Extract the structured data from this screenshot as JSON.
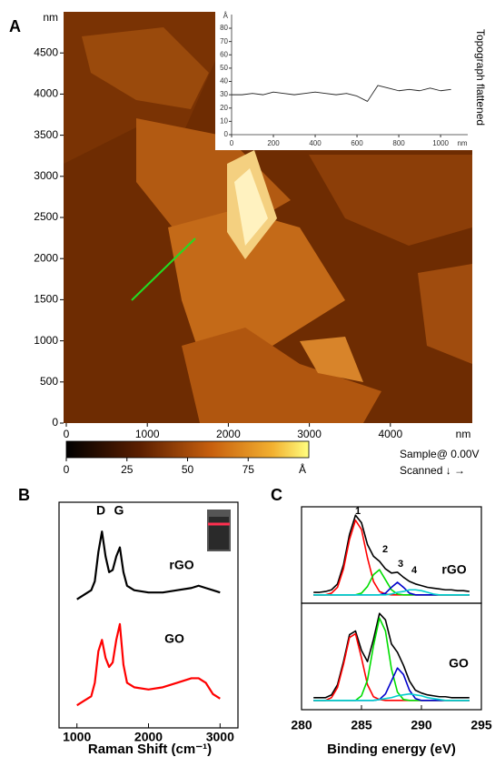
{
  "chart_data": [
    {
      "type": "image",
      "label": "A",
      "xlim": [
        0,
        5000
      ],
      "ylim": [
        0,
        5000
      ],
      "xticks": [
        0,
        1000,
        2000,
        3000,
        4000
      ],
      "yticks": [
        0,
        500,
        1000,
        1500,
        2000,
        2500,
        3000,
        3500,
        4000,
        4500
      ],
      "xunit": "nm",
      "yunit": "nm",
      "colorbar": {
        "lim": [
          0,
          100
        ],
        "ticks": [
          0,
          25,
          50,
          75
        ],
        "unit": "Å"
      },
      "annotations": [
        "Sample@ 0.00V",
        "Scanned ↓ →"
      ]
    },
    {
      "type": "line",
      "title": "Topograph flattened",
      "color": "#222222",
      "x": [
        0,
        50,
        100,
        150,
        200,
        250,
        300,
        350,
        400,
        450,
        500,
        550,
        600,
        650,
        700,
        750,
        800,
        850,
        900,
        950,
        1000,
        1050
      ],
      "values": [
        30,
        30,
        31,
        30,
        32,
        31,
        30,
        31,
        32,
        31,
        30,
        31,
        29,
        25,
        37,
        35,
        33,
        34,
        33,
        35,
        33,
        34
      ],
      "xlim": [
        0,
        1130
      ],
      "ylim": [
        0,
        90
      ],
      "xticks": [
        0,
        200,
        400,
        600,
        800,
        1000
      ],
      "yticks": [
        0,
        10,
        20,
        30,
        40,
        50,
        60,
        70,
        80
      ],
      "xunit": "nm",
      "yunit": "Å"
    },
    {
      "type": "line",
      "label": "B",
      "xlabel": "Raman Shift (cm⁻¹)",
      "x": [
        1000,
        1100,
        1200,
        1250,
        1300,
        1350,
        1400,
        1450,
        1500,
        1550,
        1600,
        1650,
        1700,
        1800,
        2000,
        2200,
        2400,
        2600,
        2700,
        2800,
        2900,
        3000
      ],
      "series": [
        {
          "name": "rGO",
          "color": "#000000",
          "values": [
            5.7,
            5.9,
            6.1,
            6.5,
            7.8,
            8.7,
            7.6,
            6.9,
            7.0,
            7.6,
            8.0,
            6.9,
            6.3,
            6.1,
            6.0,
            6.0,
            6.1,
            6.2,
            6.3,
            6.2,
            6.1,
            6.0
          ]
        },
        {
          "name": "GO",
          "color": "#ff0000",
          "values": [
            1.0,
            1.2,
            1.4,
            2.0,
            3.4,
            3.9,
            3.1,
            2.7,
            2.9,
            3.9,
            4.6,
            2.8,
            2.0,
            1.8,
            1.7,
            1.8,
            2.0,
            2.2,
            2.2,
            2.0,
            1.5,
            1.3
          ]
        }
      ],
      "xlim": [
        750,
        3250
      ],
      "ylim": [
        0,
        10
      ],
      "xticks": [
        1000,
        2000,
        3000
      ],
      "annotations": [
        "D",
        "G"
      ]
    },
    {
      "type": "line",
      "label": "C",
      "title": "rGO",
      "x": [
        281,
        281.5,
        282,
        282.5,
        283,
        283.5,
        284,
        284.5,
        285,
        285.5,
        286,
        286.5,
        287,
        287.5,
        288,
        288.5,
        289,
        289.5,
        290,
        290.5,
        291,
        291.5,
        292,
        292.5,
        293,
        293.5,
        294
      ],
      "series": [
        {
          "color": "#000000",
          "values": [
            0.03,
            0.03,
            0.04,
            0.06,
            0.13,
            0.36,
            0.72,
            0.95,
            0.86,
            0.6,
            0.46,
            0.4,
            0.31,
            0.26,
            0.27,
            0.21,
            0.16,
            0.13,
            0.11,
            0.09,
            0.08,
            0.07,
            0.06,
            0.06,
            0.05,
            0.05,
            0.04
          ]
        },
        {
          "color": "#ff0000",
          "values": [
            0,
            0,
            0,
            0.02,
            0.09,
            0.31,
            0.66,
            0.89,
            0.78,
            0.44,
            0.16,
            0.04,
            0.01,
            0,
            0,
            0,
            0,
            0,
            0,
            0,
            0,
            0,
            0,
            0,
            0,
            0,
            0
          ]
        },
        {
          "color": "#00dd00",
          "values": [
            0,
            0,
            0,
            0,
            0,
            0,
            0,
            0,
            0.02,
            0.1,
            0.24,
            0.3,
            0.18,
            0.06,
            0.01,
            0,
            0,
            0,
            0,
            0,
            0,
            0,
            0,
            0,
            0,
            0,
            0
          ]
        },
        {
          "color": "#0000cc",
          "values": [
            0,
            0,
            0,
            0,
            0,
            0,
            0,
            0,
            0,
            0,
            0,
            0,
            0.02,
            0.09,
            0.15,
            0.09,
            0.02,
            0,
            0,
            0,
            0,
            0,
            0,
            0,
            0,
            0,
            0
          ]
        },
        {
          "color": "#00cccc",
          "values": [
            0,
            0,
            0,
            0,
            0,
            0,
            0,
            0,
            0,
            0,
            0,
            0,
            0,
            0.01,
            0.03,
            0.04,
            0.06,
            0.06,
            0.05,
            0.03,
            0.01,
            0,
            0,
            0,
            0,
            0,
            0
          ]
        }
      ],
      "xlim": [
        280,
        295
      ],
      "ylim": [
        -0.1,
        1.05
      ],
      "annotations": [
        "1",
        "2",
        "3",
        "4"
      ]
    },
    {
      "type": "line",
      "title": "GO",
      "xlabel": "Binding energy (eV)",
      "x": [
        281,
        281.5,
        282,
        282.5,
        283,
        283.5,
        284,
        284.5,
        285,
        285.5,
        286,
        286.5,
        287,
        287.5,
        288,
        288.5,
        289,
        289.5,
        290,
        290.5,
        291,
        291.5,
        292,
        292.5,
        293,
        293.5,
        294
      ],
      "series": [
        {
          "color": "#000000",
          "values": [
            0.03,
            0.03,
            0.03,
            0.06,
            0.17,
            0.42,
            0.71,
            0.75,
            0.54,
            0.42,
            0.66,
            0.94,
            0.87,
            0.61,
            0.52,
            0.38,
            0.21,
            0.11,
            0.08,
            0.06,
            0.05,
            0.04,
            0.04,
            0.03,
            0.03,
            0.03,
            0.03
          ]
        },
        {
          "color": "#ff0000",
          "values": [
            0,
            0,
            0,
            0.03,
            0.14,
            0.39,
            0.68,
            0.72,
            0.46,
            0.17,
            0.04,
            0.01,
            0,
            0,
            0,
            0,
            0,
            0,
            0,
            0,
            0,
            0,
            0,
            0,
            0,
            0,
            0
          ]
        },
        {
          "color": "#00dd00",
          "values": [
            0,
            0,
            0,
            0,
            0,
            0,
            0,
            0,
            0.05,
            0.22,
            0.59,
            0.89,
            0.75,
            0.34,
            0.09,
            0.01,
            0,
            0,
            0,
            0,
            0,
            0,
            0,
            0,
            0,
            0,
            0
          ]
        },
        {
          "color": "#0000cc",
          "values": [
            0,
            0,
            0,
            0,
            0,
            0,
            0,
            0,
            0,
            0,
            0,
            0.01,
            0.07,
            0.21,
            0.35,
            0.28,
            0.11,
            0.02,
            0,
            0,
            0,
            0,
            0,
            0,
            0,
            0,
            0
          ]
        },
        {
          "color": "#00cccc",
          "values": [
            0,
            0,
            0,
            0,
            0,
            0,
            0,
            0,
            0,
            0,
            0,
            0.01,
            0.02,
            0.03,
            0.05,
            0.06,
            0.07,
            0.06,
            0.05,
            0.03,
            0.02,
            0.01,
            0,
            0,
            0,
            0,
            0
          ]
        }
      ],
      "xlim": [
        280,
        295
      ],
      "ylim": [
        -0.1,
        1.05
      ],
      "xticks": [
        280,
        285,
        290,
        295
      ]
    }
  ]
}
